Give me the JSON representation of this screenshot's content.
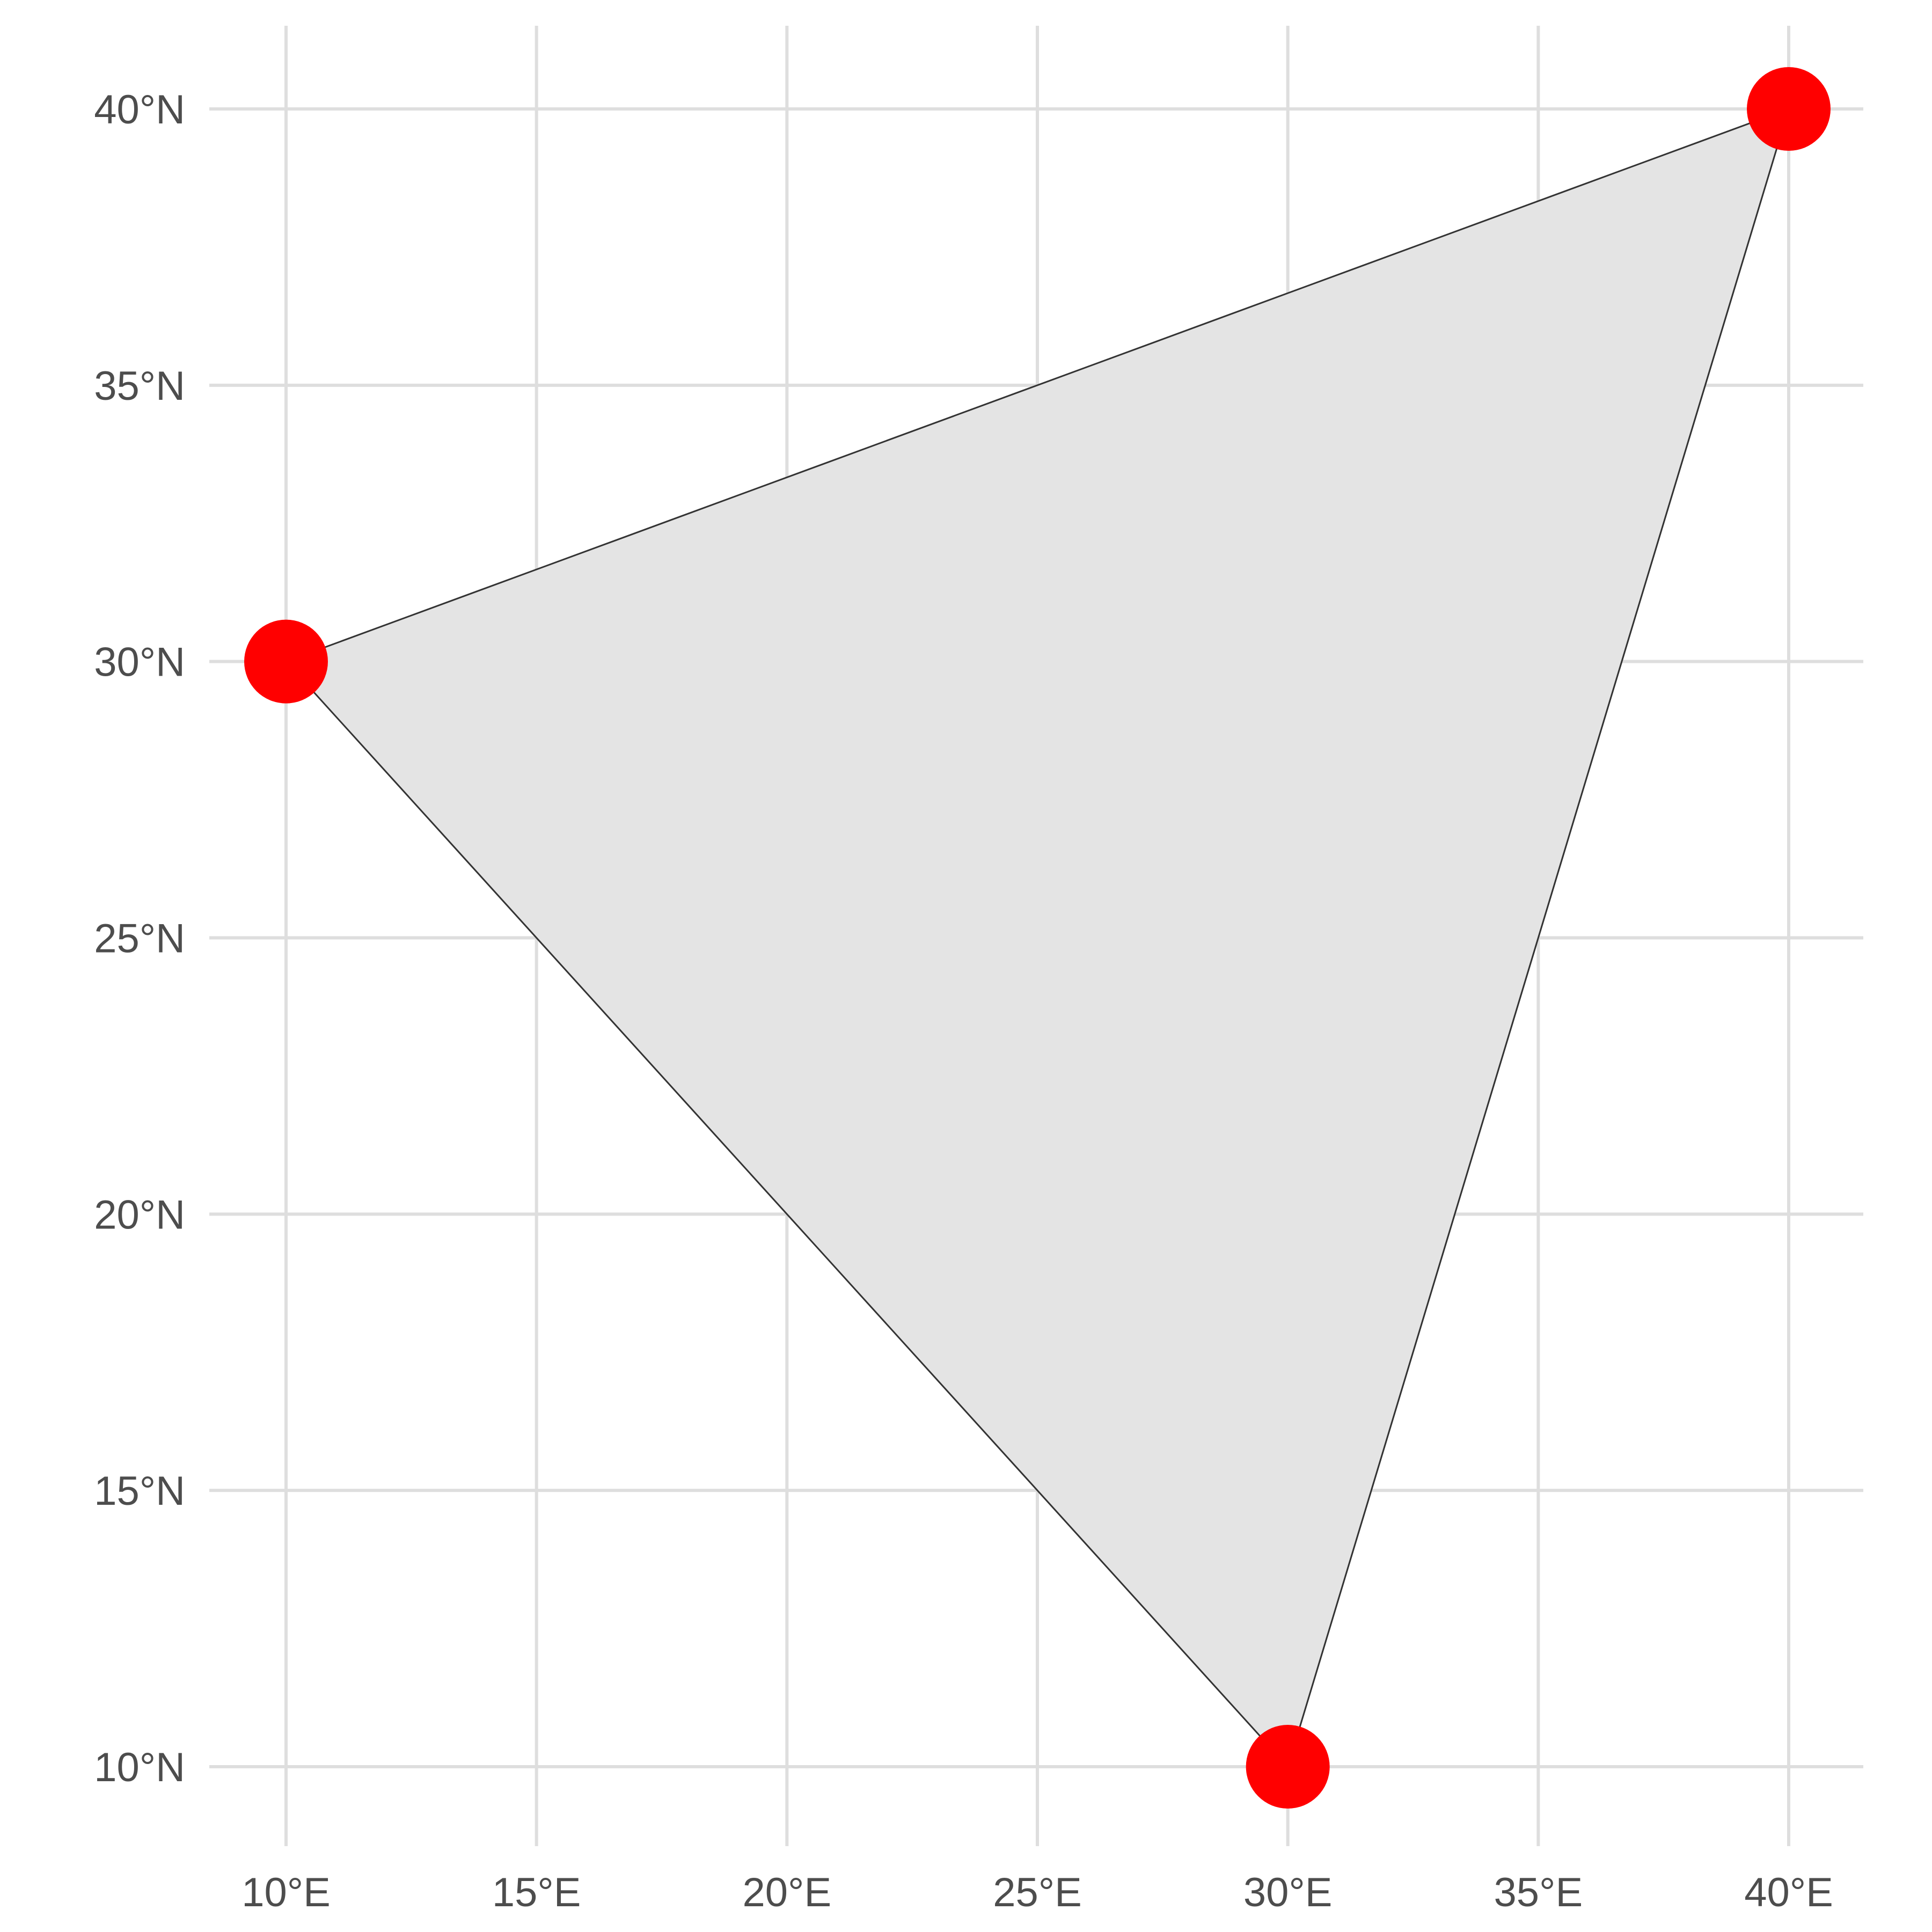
{
  "chart_data": {
    "type": "scatter",
    "title": "",
    "xlabel": "",
    "ylabel": "",
    "xlim": [
      8.4,
      41.6
    ],
    "ylim": [
      8.6,
      41.6
    ],
    "x_ticks": [
      {
        "value": 10,
        "label": "10°E"
      },
      {
        "value": 15,
        "label": "15°E"
      },
      {
        "value": 20,
        "label": "20°E"
      },
      {
        "value": 25,
        "label": "25°E"
      },
      {
        "value": 30,
        "label": "30°E"
      },
      {
        "value": 35,
        "label": "35°E"
      },
      {
        "value": 40,
        "label": "40°E"
      }
    ],
    "y_ticks": [
      {
        "value": 10,
        "label": "10°N"
      },
      {
        "value": 15,
        "label": "15°N"
      },
      {
        "value": 20,
        "label": "20°N"
      },
      {
        "value": 25,
        "label": "25°N"
      },
      {
        "value": 30,
        "label": "30°N"
      },
      {
        "value": 35,
        "label": "35°N"
      },
      {
        "value": 40,
        "label": "40°N"
      }
    ],
    "grid": true,
    "polygon": {
      "vertices": [
        [
          10,
          30
        ],
        [
          40,
          40
        ],
        [
          30,
          10
        ]
      ],
      "fill_color": "#e4e4e4",
      "stroke_color": "#333333"
    },
    "points": {
      "x": [
        10,
        40,
        30
      ],
      "y": [
        30,
        40,
        10
      ],
      "color": "#ff0000"
    }
  }
}
